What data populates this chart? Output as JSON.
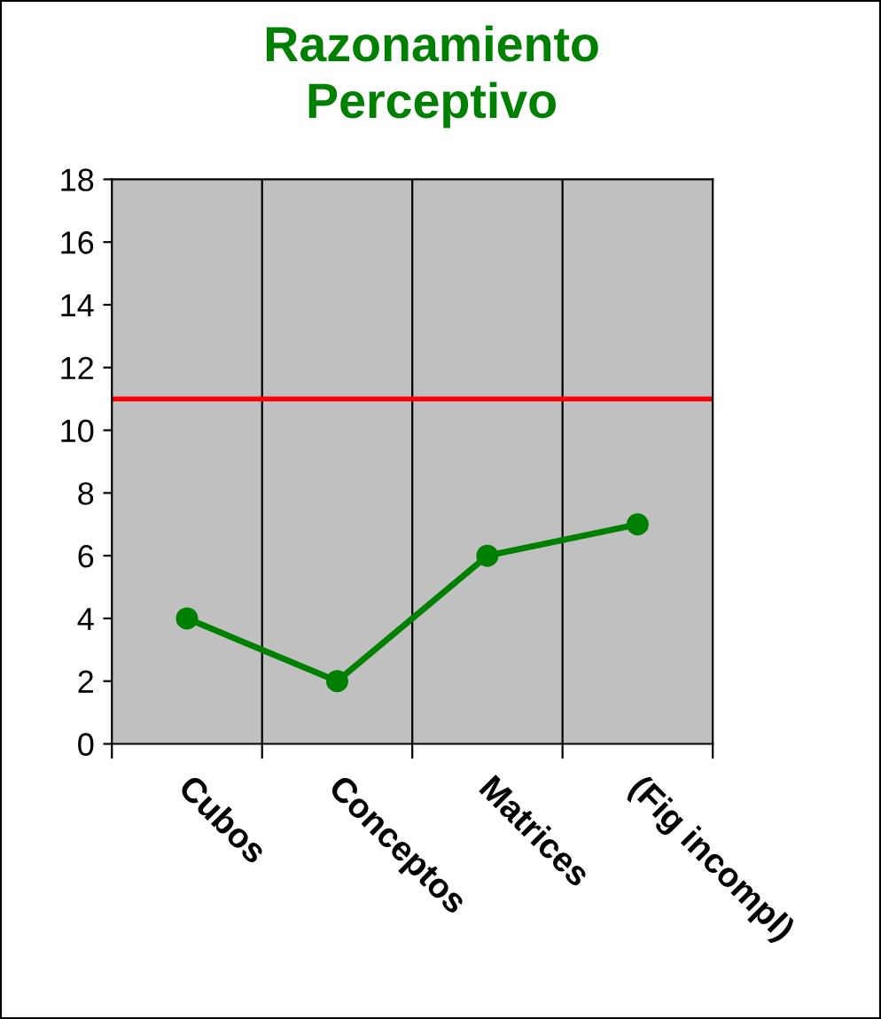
{
  "chart_data": {
    "type": "line",
    "title": "Razonamiento\nPerceptivo",
    "categories": [
      "Cubos",
      "Conceptos",
      "Matrices",
      "(Fig incompl)"
    ],
    "series": [
      {
        "color": "#008000",
        "values": [
          4,
          2,
          6,
          7
        ]
      }
    ],
    "ylim": [
      0,
      18
    ],
    "yticks": [
      0,
      2,
      4,
      6,
      8,
      10,
      12,
      14,
      16,
      18
    ],
    "ref_lines": [
      {
        "axis": "y",
        "value": 11,
        "color": "#ff0000"
      }
    ],
    "grid": "x",
    "marker": "circle",
    "line_style": "solid",
    "legend": false
  }
}
